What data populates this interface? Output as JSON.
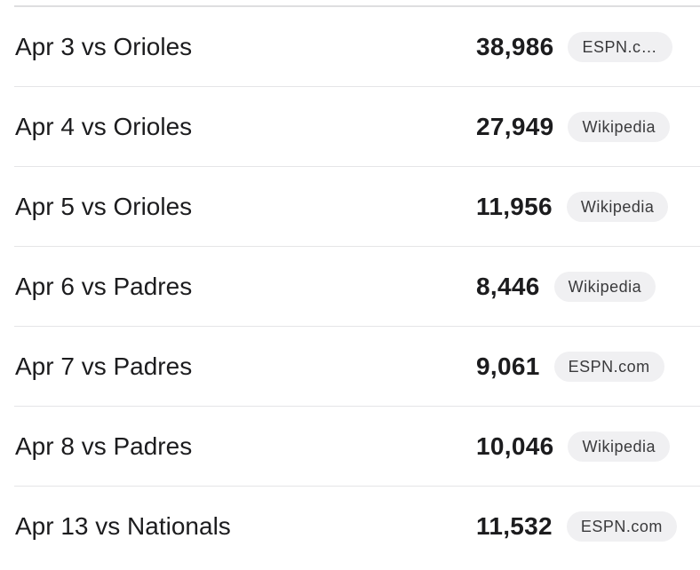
{
  "games": [
    {
      "label": "Apr 3 vs Orioles",
      "attendance": "38,986",
      "source": "ESPN.com"
    },
    {
      "label": "Apr 4 vs Orioles",
      "attendance": "27,949",
      "source": "Wikipedia"
    },
    {
      "label": "Apr 5 vs Orioles",
      "attendance": "11,956",
      "source": "Wikipedia"
    },
    {
      "label": "Apr 6 vs Padres",
      "attendance": "8,446",
      "source": "Wikipedia"
    },
    {
      "label": "Apr 7 vs Padres",
      "attendance": "9,061",
      "source": "ESPN.com"
    },
    {
      "label": "Apr 8 vs Padres",
      "attendance": "10,046",
      "source": "Wikipedia"
    },
    {
      "label": "Apr 13 vs Nationals",
      "attendance": "11,532",
      "source": "ESPN.com"
    }
  ]
}
